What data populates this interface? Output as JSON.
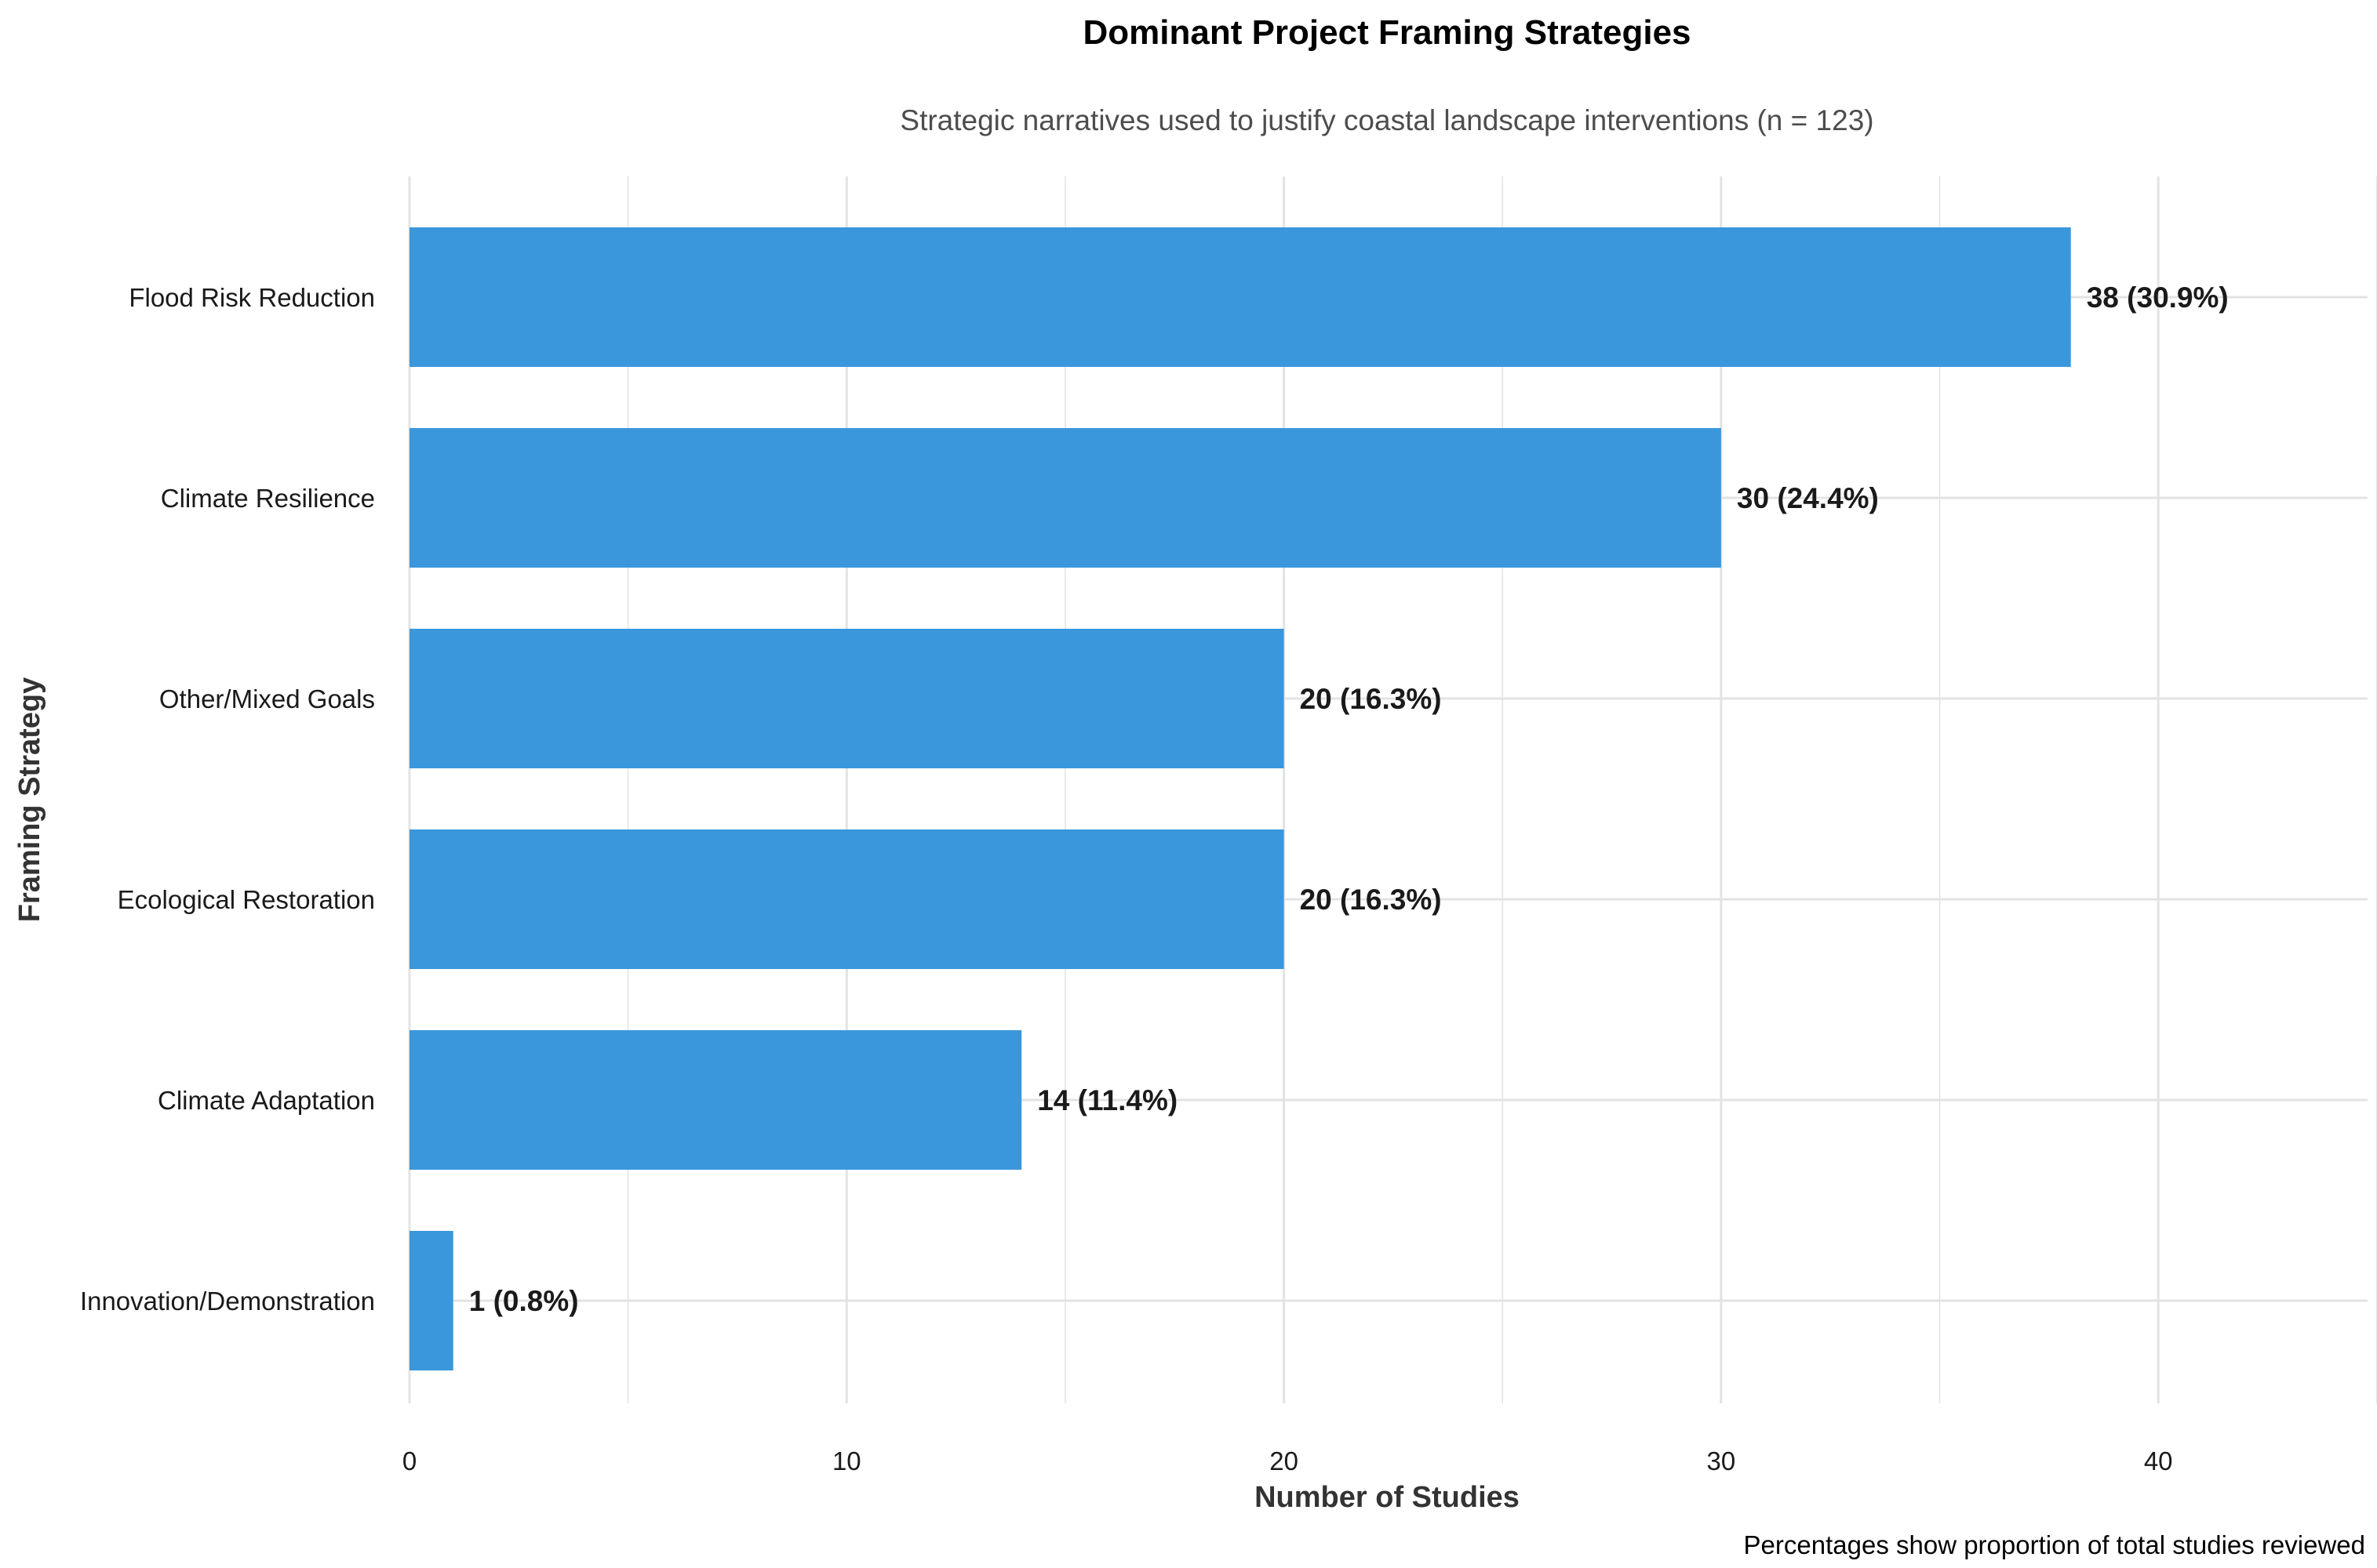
{
  "chart_data": {
    "type": "bar",
    "orientation": "horizontal",
    "title": "Dominant Project Framing Strategies",
    "subtitle": "Strategic narratives used to justify coastal landscape interventions (n = 123)",
    "xlabel": "Number of Studies",
    "ylabel": "Framing Strategy",
    "caption": "Percentages show proportion of total studies reviewed",
    "xlim": [
      0,
      45
    ],
    "xticks": [
      0,
      10,
      20,
      30,
      40
    ],
    "grid": true,
    "legend": "none",
    "bar_color": "#3A97DC",
    "categories": [
      "Flood Risk Reduction",
      "Climate Resilience",
      "Other/Mixed Goals",
      "Ecological Restoration",
      "Climate Adaptation",
      "Innovation/Demonstration"
    ],
    "values": [
      38,
      30,
      20,
      20,
      14,
      1
    ],
    "data_labels": [
      "38 (30.9%)",
      "30 (24.4%)",
      "20 (16.3%)",
      "20 (16.3%)",
      "14 (11.4%)",
      "1 (0.8%)"
    ]
  }
}
